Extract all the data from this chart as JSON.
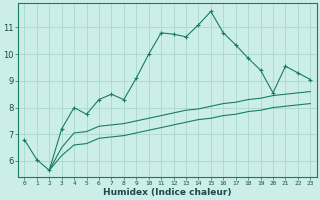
{
  "xlabel": "Humidex (Indice chaleur)",
  "bg_color": "#cceee8",
  "line_color": "#1a7a6a",
  "grid_color": "#aad8d0",
  "x_ticks": [
    0,
    1,
    2,
    3,
    4,
    5,
    6,
    7,
    8,
    9,
    10,
    11,
    12,
    13,
    14,
    15,
    16,
    17,
    18,
    19,
    20,
    21,
    22,
    23
  ],
  "y_ticks": [
    6,
    7,
    8,
    9,
    10,
    11
  ],
  "ylim": [
    5.4,
    11.9
  ],
  "xlim": [
    -0.5,
    23.5
  ],
  "series1_x": [
    0,
    1,
    2,
    3,
    4,
    5,
    6,
    7,
    8,
    9,
    10,
    11,
    12,
    13,
    14,
    15,
    16,
    17,
    18,
    19,
    20,
    21,
    22,
    23
  ],
  "series1_y": [
    6.8,
    6.05,
    5.65,
    7.2,
    8.0,
    7.75,
    8.3,
    8.5,
    8.3,
    9.1,
    10.0,
    10.8,
    10.75,
    10.65,
    11.1,
    11.6,
    10.8,
    10.35,
    9.85,
    9.4,
    8.55,
    9.55,
    9.3,
    9.05
  ],
  "series2_x": [
    2,
    3,
    4,
    5,
    6,
    7,
    8,
    9,
    10,
    11,
    12,
    13,
    14,
    15,
    16,
    17,
    18,
    19,
    20,
    21,
    22,
    23
  ],
  "series2_y": [
    5.65,
    6.5,
    7.05,
    7.1,
    7.3,
    7.35,
    7.4,
    7.5,
    7.6,
    7.7,
    7.8,
    7.9,
    7.95,
    8.05,
    8.15,
    8.2,
    8.3,
    8.35,
    8.45,
    8.5,
    8.55,
    8.6
  ],
  "series3_x": [
    2,
    3,
    4,
    5,
    6,
    7,
    8,
    9,
    10,
    11,
    12,
    13,
    14,
    15,
    16,
    17,
    18,
    19,
    20,
    21,
    22,
    23
  ],
  "series3_y": [
    5.65,
    6.2,
    6.6,
    6.65,
    6.85,
    6.9,
    6.95,
    7.05,
    7.15,
    7.25,
    7.35,
    7.45,
    7.55,
    7.6,
    7.7,
    7.75,
    7.85,
    7.9,
    8.0,
    8.05,
    8.1,
    8.15
  ]
}
